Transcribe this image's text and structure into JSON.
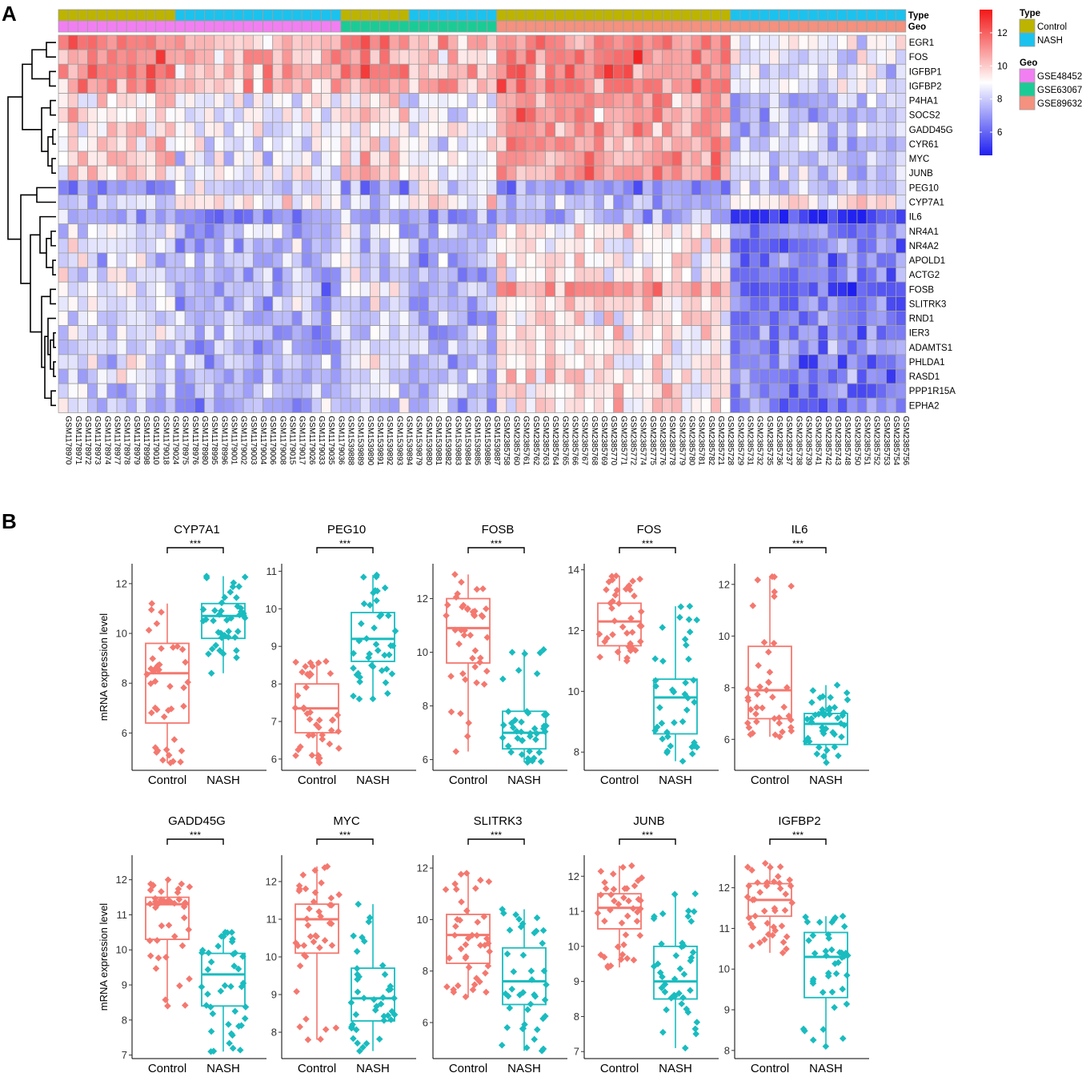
{
  "panels": {
    "a": "A",
    "b": "B"
  },
  "colors": {
    "low": "#1f1ff0",
    "mid": "#ffffff",
    "high": "#f21818",
    "control_box": "#f4786f",
    "nash_box": "#19bcbf",
    "type_control": "#bcb400",
    "type_nash": "#1bc2ee",
    "geo_gse48452": "#f27ff2",
    "geo_gse63067": "#1bcb95",
    "geo_gse89632": "#f4917f",
    "cell_border": "#9e9e9e"
  },
  "heatmap": {
    "annotation_rows": [
      "Type",
      "Geo"
    ],
    "genes": [
      "EGR1",
      "FOS",
      "IGFBP1",
      "IGFBP2",
      "P4HA1",
      "SOCS2",
      "GADD45G",
      "CYR61",
      "MYC",
      "JUNB",
      "PEG10",
      "CYP7A1",
      "IL6",
      "NR4A1",
      "NR4A2",
      "APOLD1",
      "ACTG2",
      "FOSB",
      "SLITRK3",
      "RND1",
      "IER3",
      "ADAMTS1",
      "PHLDA1",
      "RASD1",
      "PPP1R15A",
      "EPHA2"
    ],
    "samples": [
      "GSM1178970",
      "GSM1178971",
      "GSM1178972",
      "GSM1178973",
      "GSM1178974",
      "GSM1178977",
      "GSM1178978",
      "GSM1178979",
      "GSM1178998",
      "GSM1179010",
      "GSM1179018",
      "GSM1179024",
      "GSM1178975",
      "GSM1178976",
      "GSM1178980",
      "GSM1178995",
      "GSM1178996",
      "GSM1179001",
      "GSM1179002",
      "GSM1179003",
      "GSM1179004",
      "GSM1179006",
      "GSM1179008",
      "GSM1179015",
      "GSM1179017",
      "GSM1179026",
      "GSM1179033",
      "GSM1179035",
      "GSM1179036",
      "GSM1539888",
      "GSM1539889",
      "GSM1539890",
      "GSM1539891",
      "GSM1539892",
      "GSM1539893",
      "GSM1539894",
      "GSM1539879",
      "GSM1539880",
      "GSM1539881",
      "GSM1539882",
      "GSM1539883",
      "GSM1539884",
      "GSM1539885",
      "GSM1539886",
      "GSM1539887",
      "GSM2385758",
      "GSM2385760",
      "GSM2385761",
      "GSM2385762",
      "GSM2385763",
      "GSM2385764",
      "GSM2385765",
      "GSM2385766",
      "GSM2385767",
      "GSM2385768",
      "GSM2385769",
      "GSM2385770",
      "GSM2385771",
      "GSM2385772",
      "GSM2385774",
      "GSM2385775",
      "GSM2385776",
      "GSM2385778",
      "GSM2385779",
      "GSM2385780",
      "GSM2385781",
      "GSM2385782",
      "GSM2385721",
      "GSM2385728",
      "GSM2385729",
      "GSM2385731",
      "GSM2385732",
      "GSM2385735",
      "GSM2385736",
      "GSM2385737",
      "GSM2385738",
      "GSM2385739",
      "GSM2385741",
      "GSM2385742",
      "GSM2385743",
      "GSM2385748",
      "GSM2385750",
      "GSM2385751",
      "GSM2385752",
      "GSM2385753",
      "GSM2385754",
      "GSM2385756"
    ],
    "type_groups": [
      {
        "label": "Control",
        "count": 12
      },
      {
        "label": "NASH",
        "count": 17
      },
      {
        "label": "Control",
        "count": 7
      },
      {
        "label": "NASH",
        "count": 9
      },
      {
        "label": "Control",
        "count": 24
      },
      {
        "label": "NASH",
        "count": 18
      }
    ],
    "geo_groups": [
      {
        "label": "GSE48452",
        "count": 29
      },
      {
        "label": "GSE63067",
        "count": 16
      },
      {
        "label": "GSE89632",
        "count": 42
      }
    ],
    "scale": {
      "min": 4.6,
      "max": 13.4,
      "ticks": [
        12,
        10,
        8,
        6
      ]
    },
    "legend": {
      "type_title": "Type",
      "type_items": [
        "Control",
        "NASH"
      ],
      "geo_title": "Geo",
      "geo_items": [
        "GSE48452",
        "GSE63067",
        "GSE89632"
      ]
    }
  },
  "chart_data": [
    {
      "type": "box",
      "title": "CYP7A1",
      "categories": [
        "Control",
        "NASH"
      ],
      "ylabel": "mRNA expression level",
      "significance": "***",
      "ylim": [
        4.5,
        12.8
      ],
      "yticks": [
        6,
        8,
        10,
        12
      ],
      "boxes": [
        {
          "min": 4.8,
          "q1": 6.4,
          "median": 8.4,
          "q3": 9.6,
          "max": 11.2
        },
        {
          "min": 8.4,
          "q1": 9.8,
          "median": 10.7,
          "q3": 11.2,
          "max": 12.3
        }
      ]
    },
    {
      "type": "box",
      "title": "PEG10",
      "categories": [
        "Control",
        "NASH"
      ],
      "ylabel": "",
      "significance": "***",
      "ylim": [
        5.7,
        11.2
      ],
      "yticks": [
        6,
        7,
        8,
        9,
        10,
        11
      ],
      "boxes": [
        {
          "min": 5.9,
          "q1": 6.7,
          "median": 7.35,
          "q3": 8.0,
          "max": 8.6
        },
        {
          "min": 7.6,
          "q1": 8.6,
          "median": 9.2,
          "q3": 9.9,
          "max": 10.9
        }
      ]
    },
    {
      "type": "box",
      "title": "FOSB",
      "categories": [
        "Control",
        "NASH"
      ],
      "ylabel": "",
      "significance": "***",
      "ylim": [
        5.6,
        13.3
      ],
      "yticks": [
        6,
        8,
        10,
        12
      ],
      "boxes": [
        {
          "min": 6.3,
          "q1": 9.6,
          "median": 10.9,
          "q3": 12.0,
          "max": 12.9
        },
        {
          "min": 5.9,
          "q1": 6.4,
          "median": 7.0,
          "q3": 7.8,
          "max": 10.1
        }
      ]
    },
    {
      "type": "box",
      "title": "FOS",
      "categories": [
        "Control",
        "NASH"
      ],
      "ylabel": "",
      "significance": "***",
      "ylim": [
        7.4,
        14.2
      ],
      "yticks": [
        8,
        10,
        12,
        14
      ],
      "boxes": [
        {
          "min": 11.0,
          "q1": 11.5,
          "median": 12.3,
          "q3": 12.9,
          "max": 13.8
        },
        {
          "min": 7.7,
          "q1": 8.6,
          "median": 9.8,
          "q3": 10.4,
          "max": 12.8
        }
      ]
    },
    {
      "type": "box",
      "title": "IL6",
      "categories": [
        "Control",
        "NASH"
      ],
      "ylabel": "",
      "significance": "***",
      "ylim": [
        4.8,
        12.8
      ],
      "yticks": [
        6,
        8,
        10,
        12
      ],
      "boxes": [
        {
          "min": 6.1,
          "q1": 6.8,
          "median": 7.9,
          "q3": 9.6,
          "max": 12.3
        },
        {
          "min": 5.1,
          "q1": 5.8,
          "median": 6.6,
          "q3": 7.0,
          "max": 8.1
        }
      ]
    },
    {
      "type": "box",
      "title": "GADD45G",
      "categories": [
        "Control",
        "NASH"
      ],
      "ylabel": "mRNA expression level",
      "significance": "***",
      "ylim": [
        6.9,
        12.7
      ],
      "yticks": [
        7,
        8,
        9,
        10,
        11,
        12
      ],
      "boxes": [
        {
          "min": 8.4,
          "q1": 10.3,
          "median": 11.3,
          "q3": 11.5,
          "max": 12.0
        },
        {
          "min": 7.1,
          "q1": 8.4,
          "median": 9.3,
          "q3": 9.9,
          "max": 10.5
        }
      ]
    },
    {
      "type": "box",
      "title": "MYC",
      "categories": [
        "Control",
        "NASH"
      ],
      "ylabel": "",
      "significance": "***",
      "ylim": [
        7.3,
        12.7
      ],
      "yticks": [
        8,
        9,
        10,
        11,
        12
      ],
      "boxes": [
        {
          "min": 7.8,
          "q1": 10.1,
          "median": 11.0,
          "q3": 11.4,
          "max": 12.4
        },
        {
          "min": 7.5,
          "q1": 8.3,
          "median": 8.9,
          "q3": 9.7,
          "max": 11.4
        }
      ]
    },
    {
      "type": "box",
      "title": "SLITRK3",
      "categories": [
        "Control",
        "NASH"
      ],
      "ylabel": "",
      "significance": "***",
      "ylim": [
        4.6,
        12.5
      ],
      "yticks": [
        6,
        8,
        10,
        12
      ],
      "boxes": [
        {
          "min": 7.0,
          "q1": 8.3,
          "median": 9.4,
          "q3": 10.2,
          "max": 11.8
        },
        {
          "min": 4.9,
          "q1": 6.7,
          "median": 7.6,
          "q3": 8.9,
          "max": 10.4
        }
      ]
    },
    {
      "type": "box",
      "title": "JUNB",
      "categories": [
        "Control",
        "NASH"
      ],
      "ylabel": "",
      "significance": "***",
      "ylim": [
        6.8,
        12.6
      ],
      "yticks": [
        7,
        8,
        9,
        10,
        11,
        12
      ],
      "boxes": [
        {
          "min": 9.4,
          "q1": 10.5,
          "median": 11.1,
          "q3": 11.5,
          "max": 12.3
        },
        {
          "min": 7.1,
          "q1": 8.5,
          "median": 9.0,
          "q3": 10.0,
          "max": 11.5
        }
      ]
    },
    {
      "type": "box",
      "title": "IGFBP2",
      "categories": [
        "Control",
        "NASH"
      ],
      "ylabel": "",
      "significance": "***",
      "ylim": [
        7.8,
        12.8
      ],
      "yticks": [
        8,
        9,
        10,
        11,
        12
      ],
      "boxes": [
        {
          "min": 10.4,
          "q1": 11.3,
          "median": 11.7,
          "q3": 12.1,
          "max": 12.6
        },
        {
          "min": 8.1,
          "q1": 9.3,
          "median": 10.3,
          "q3": 10.9,
          "max": 11.3
        }
      ]
    }
  ]
}
